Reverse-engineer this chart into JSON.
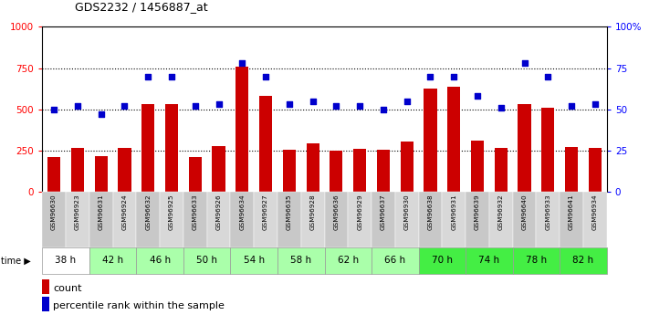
{
  "title": "GDS2232 / 1456887_at",
  "samples": [
    "GSM96630",
    "GSM96923",
    "GSM96631",
    "GSM96924",
    "GSM96632",
    "GSM96925",
    "GSM96633",
    "GSM96926",
    "GSM96634",
    "GSM96927",
    "GSM96635",
    "GSM96928",
    "GSM96636",
    "GSM96929",
    "GSM96637",
    "GSM96930",
    "GSM96638",
    "GSM96931",
    "GSM96639",
    "GSM96932",
    "GSM96640",
    "GSM96933",
    "GSM96641",
    "GSM96934"
  ],
  "time_groups": [
    {
      "label": "38 h",
      "start": 0,
      "end": 1,
      "color": "#ffffff"
    },
    {
      "label": "42 h",
      "start": 2,
      "end": 3,
      "color": "#aaffaa"
    },
    {
      "label": "46 h",
      "start": 4,
      "end": 5,
      "color": "#aaffaa"
    },
    {
      "label": "50 h",
      "start": 6,
      "end": 7,
      "color": "#aaffaa"
    },
    {
      "label": "54 h",
      "start": 8,
      "end": 9,
      "color": "#aaffaa"
    },
    {
      "label": "58 h",
      "start": 10,
      "end": 11,
      "color": "#aaffaa"
    },
    {
      "label": "62 h",
      "start": 12,
      "end": 13,
      "color": "#aaffaa"
    },
    {
      "label": "66 h",
      "start": 14,
      "end": 15,
      "color": "#aaffaa"
    },
    {
      "label": "70 h",
      "start": 16,
      "end": 17,
      "color": "#44ee44"
    },
    {
      "label": "74 h",
      "start": 18,
      "end": 19,
      "color": "#44ee44"
    },
    {
      "label": "78 h",
      "start": 20,
      "end": 21,
      "color": "#44ee44"
    },
    {
      "label": "82 h",
      "start": 22,
      "end": 23,
      "color": "#44ee44"
    }
  ],
  "bar_values": [
    210,
    265,
    220,
    265,
    530,
    535,
    210,
    280,
    760,
    580,
    255,
    295,
    250,
    260,
    255,
    305,
    625,
    640,
    310,
    265,
    530,
    510,
    275,
    270
  ],
  "dot_values": [
    50,
    52,
    47,
    52,
    70,
    70,
    52,
    53,
    78,
    70,
    53,
    55,
    52,
    52,
    50,
    55,
    70,
    70,
    58,
    51,
    78,
    70,
    52,
    53
  ],
  "bar_color": "#cc0000",
  "dot_color": "#0000cc",
  "ylim_left": [
    0,
    1000
  ],
  "ylim_right": [
    0,
    100
  ],
  "yticks_left": [
    0,
    250,
    500,
    750,
    1000
  ],
  "yticks_right": [
    0,
    25,
    50,
    75,
    100
  ],
  "grid_values": [
    250,
    500,
    750
  ],
  "sample_bg_even": "#c8c8c8",
  "sample_bg_odd": "#d8d8d8",
  "legend_count_color": "#cc0000",
  "legend_pct_color": "#0000cc"
}
